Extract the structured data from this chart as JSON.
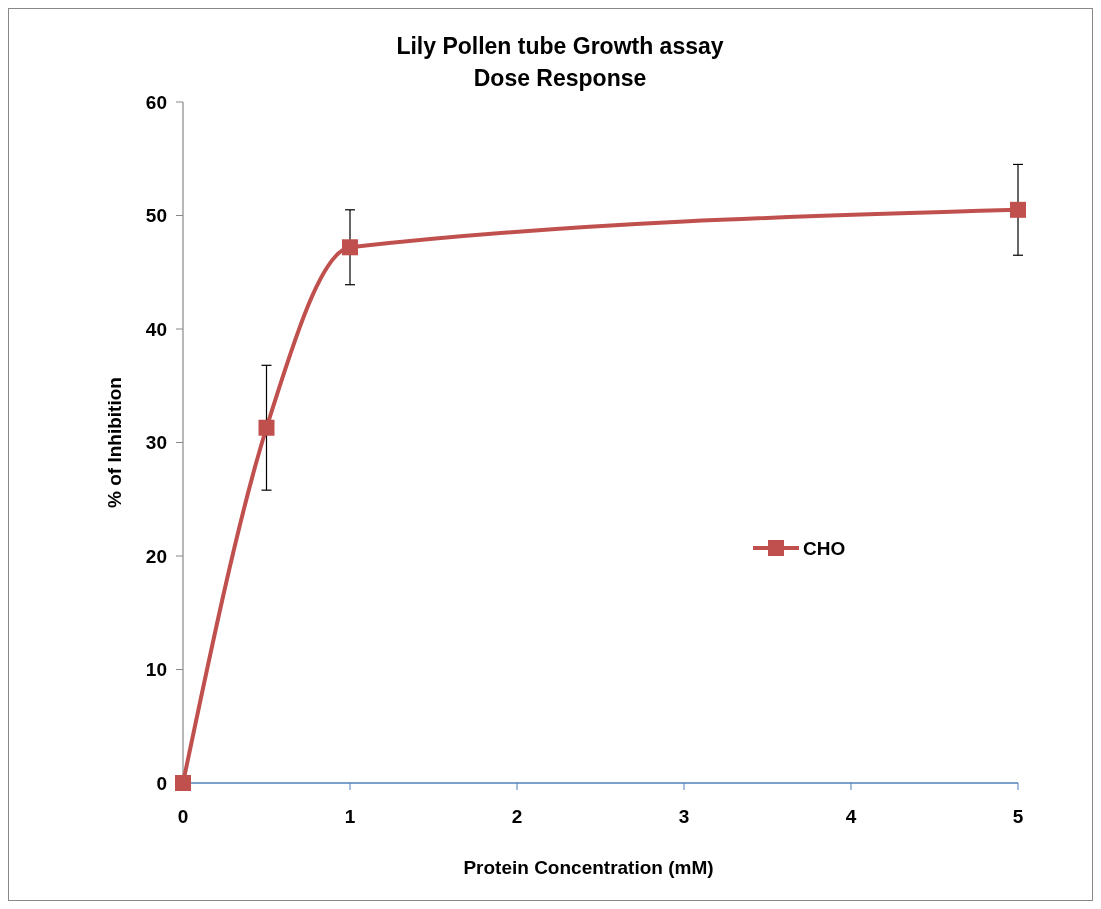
{
  "chart_data": {
    "type": "line",
    "title": "Lily Pollen tube Growth assay\nDose Response",
    "xlabel": "Protein Concentration (mM)",
    "ylabel": "% of Inhibition",
    "x": [
      0,
      0.5,
      1,
      5
    ],
    "series": [
      {
        "name": "CHO",
        "color": "#c0504d",
        "values": [
          0,
          31.3,
          47.2,
          50.5
        ],
        "errors": [
          null,
          5.5,
          3.3,
          4
        ]
      }
    ],
    "xlim": [
      0,
      5
    ],
    "xticks": [
      0,
      1,
      2,
      3,
      4,
      5
    ],
    "ylim": [
      0,
      60
    ],
    "yticks": [
      0,
      10,
      20,
      30,
      40,
      50,
      60
    ],
    "grid": false,
    "legend": "right",
    "marker": "square",
    "line_style": "solid"
  }
}
